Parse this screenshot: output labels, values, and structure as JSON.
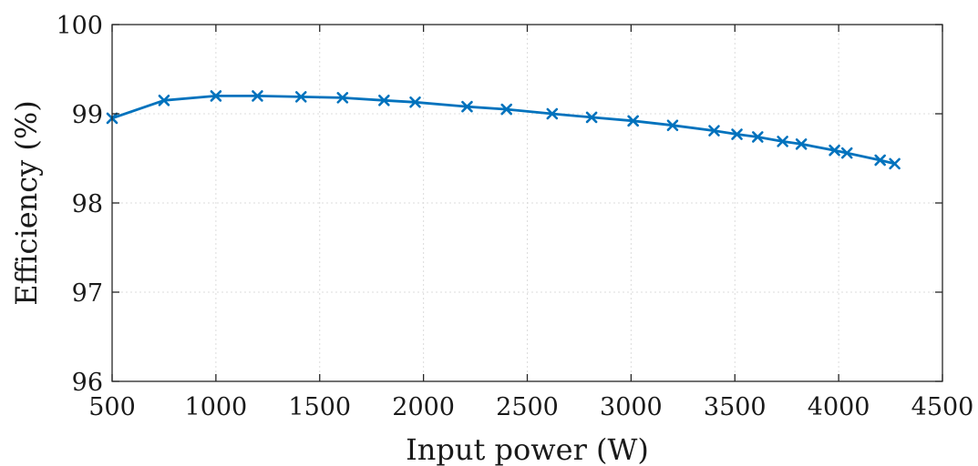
{
  "chart_data": {
    "type": "line",
    "xlabel": "Input power (W)",
    "ylabel": "Efficiency (%)",
    "xlim": [
      500,
      4500
    ],
    "ylim": [
      96,
      100
    ],
    "xticks": [
      500,
      1000,
      1500,
      2000,
      2500,
      3000,
      3500,
      4000,
      4500
    ],
    "yticks": [
      96,
      97,
      98,
      99,
      100
    ],
    "xtick_labels": [
      "500",
      "1000",
      "1500",
      "2000",
      "2500",
      "3000",
      "3500",
      "4000",
      "4500"
    ],
    "ytick_labels": [
      "96",
      "97",
      "98",
      "99",
      "100"
    ],
    "grid": true,
    "legend": "none",
    "series": [
      {
        "color": "#0072BD",
        "marker": "x",
        "x": [
          500,
          750,
          1000,
          1200,
          1410,
          1610,
          1810,
          1960,
          2210,
          2400,
          2620,
          2810,
          3010,
          3200,
          3400,
          3510,
          3610,
          3730,
          3820,
          3980,
          4040,
          4200,
          4270
        ],
        "y": [
          98.95,
          99.15,
          99.2,
          99.2,
          99.19,
          99.18,
          99.15,
          99.13,
          99.08,
          99.05,
          99.0,
          98.96,
          98.92,
          98.87,
          98.81,
          98.77,
          98.74,
          98.69,
          98.66,
          98.59,
          98.56,
          98.48,
          98.44
        ]
      }
    ]
  }
}
